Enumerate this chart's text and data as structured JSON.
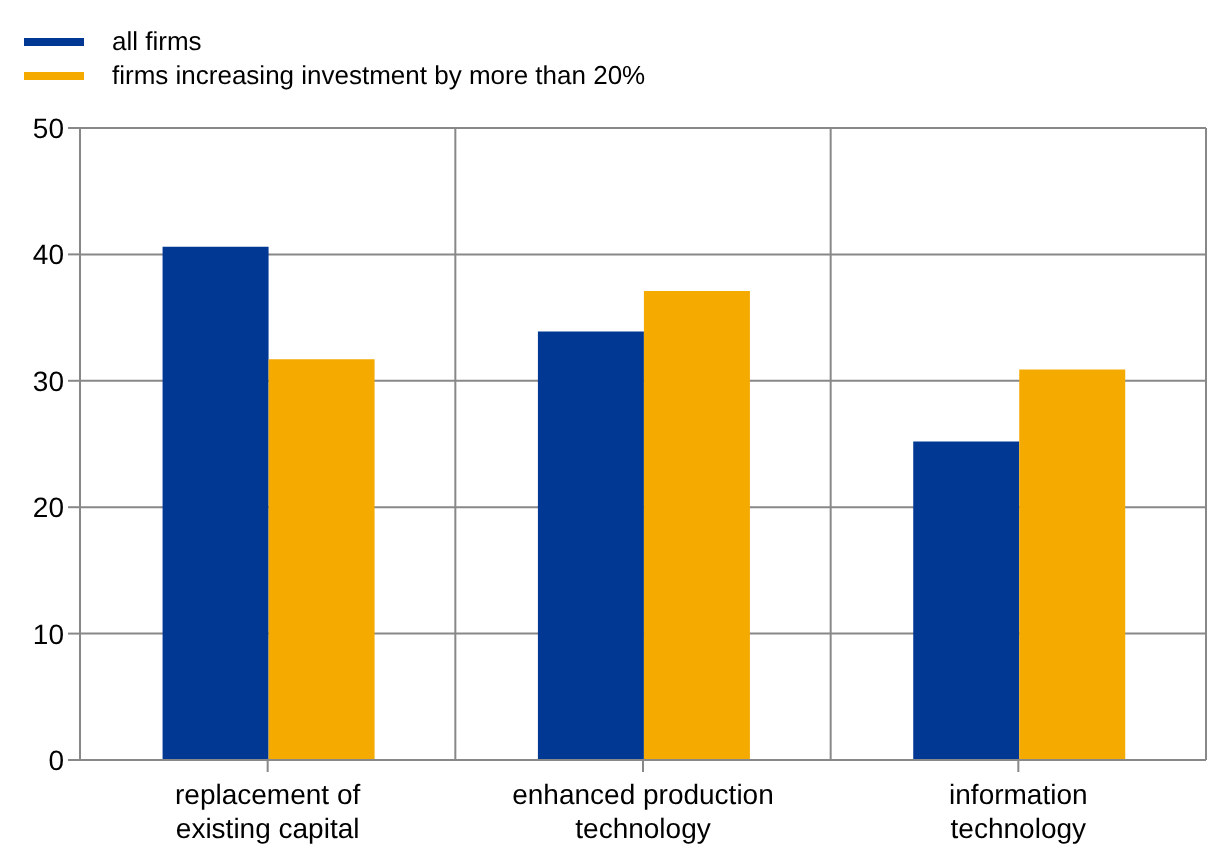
{
  "chart_data": {
    "type": "bar",
    "categories": [
      "replacement of existing capital",
      "enhanced production technology",
      "information technology"
    ],
    "series": [
      {
        "name": "all firms",
        "color": "#003894",
        "values": [
          40.6,
          33.9,
          25.2
        ]
      },
      {
        "name": "firms increasing investment by more than 20%",
        "color": "#f5aa00",
        "values": [
          31.7,
          37.1,
          30.9
        ]
      }
    ],
    "ylim": [
      0,
      50
    ],
    "yticks": [
      0,
      10,
      20,
      30,
      40,
      50
    ],
    "grid": true,
    "legend": "top left"
  }
}
